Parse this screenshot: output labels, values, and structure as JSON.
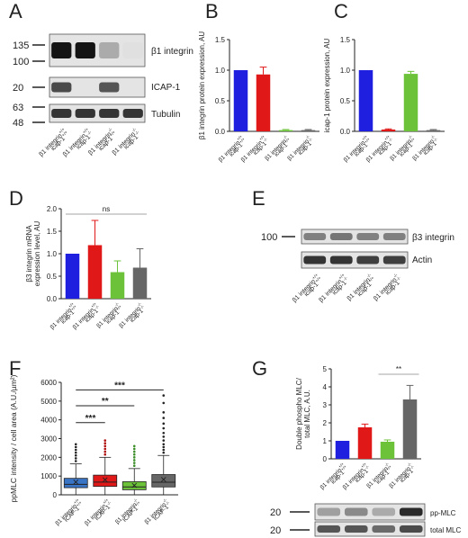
{
  "panels": {
    "A": "A",
    "B": "B",
    "C": "C",
    "D": "D",
    "E": "E",
    "F": "F",
    "G": "G"
  },
  "panel_A": {
    "markers": [
      "135",
      "100",
      "20",
      "63",
      "48"
    ],
    "bands": [
      "β1 integrin",
      "ICAP-1",
      "Tubulin"
    ],
    "lanes": [
      "β1 integrin+/+\nicap-1+/+",
      "β1 integrin+/+\nicap-1-/-",
      "β1 integrin-/-\nicap-1+/+",
      "β1 integrin-/-\nicap-1-/-"
    ]
  },
  "panel_E": {
    "markers": [
      "100"
    ],
    "bands": [
      "β3 integrin",
      "Actin"
    ],
    "lanes": [
      "β1 integrin+/+\nicap-1+/+",
      "β1 integrin+/+\nicap-1-/-",
      "β1 integrin-/-\nicap-1+/+",
      "β1 integrin-/-\nicap-1-/-"
    ]
  },
  "panel_G_blot": {
    "markers": [
      "20",
      "20"
    ],
    "bands": [
      "pp-MLC",
      "total MLC"
    ]
  },
  "chart_data": [
    {
      "panel": "B",
      "type": "bar",
      "ylabel": "β1 integrin protein expression, AU",
      "ylim": [
        0,
        1.5
      ],
      "yticks": [
        "0.0",
        "0.5",
        "1.0",
        "1.5"
      ],
      "categories": [
        "β1 integrin+/+\nicap-1+/+",
        "β1 integrin+/+\nicap-1-/-",
        "β1 integrin-/-\nicap-1+/+",
        "β1 integrin-/-\nicap-1-/-"
      ],
      "values": [
        1.0,
        0.93,
        0.02,
        0.02
      ],
      "errors": [
        0,
        0.12,
        0.01,
        0.01
      ],
      "colors": [
        "#1f1fe0",
        "#e01818",
        "#6cc33a",
        "#666666"
      ]
    },
    {
      "panel": "C",
      "type": "bar",
      "ylabel": "icap-1 protein expression, AU",
      "ylim": [
        0,
        1.5
      ],
      "yticks": [
        "0.0",
        "0.5",
        "1.0",
        "1.5"
      ],
      "categories": [
        "β1 integrin+/+\nicap-1+/+",
        "β1 integrin+/+\nicap-1-/-",
        "β1 integrin-/-\nicap-1+/+",
        "β1 integrin-/-\nicap-1-/-"
      ],
      "values": [
        1.0,
        0.03,
        0.94,
        0.02
      ],
      "errors": [
        0,
        0.01,
        0.04,
        0.01
      ],
      "colors": [
        "#1f1fe0",
        "#e01818",
        "#6cc33a",
        "#666666"
      ]
    },
    {
      "panel": "D",
      "type": "bar",
      "ylabel": "β3 integrin mRNA\nexpression level, AU",
      "ylim": [
        0,
        2.0
      ],
      "yticks": [
        "0.0",
        "0.5",
        "1.0",
        "1.5",
        "2.0"
      ],
      "categories": [
        "β1 integrin+/+\nicap-1+/+",
        "β1 integrin+/+\nicap-1-/-",
        "β1 integrin-/-\nicap-1+/+",
        "β1 integrin-/-\nicap-1-/-"
      ],
      "values": [
        1.0,
        1.19,
        0.59,
        0.69
      ],
      "errors": [
        0,
        0.55,
        0.25,
        0.42
      ],
      "colors": [
        "#1f1fe0",
        "#e01818",
        "#6cc33a",
        "#666666"
      ],
      "annotation": "ns"
    },
    {
      "panel": "F",
      "type": "box",
      "ylabel": "ppMLC intensity / cell area (A.U./µm²)",
      "ylim": [
        0,
        6000
      ],
      "yticks": [
        "0",
        "1000",
        "2000",
        "3000",
        "4000",
        "5000",
        "6000"
      ],
      "categories": [
        "β1 integrin+/+\nICAP-1+/+",
        "β1 integrin+/+\nICAP-1-/-",
        "β1 integrin-/-\nICAP-1+/+",
        "β1 integrin-/-\nICAP-1-/-"
      ],
      "boxes": [
        {
          "min": 0,
          "q1": 380,
          "median": 560,
          "q3": 880,
          "max": 1650,
          "mean": 680,
          "outliers": [
            1800,
            1950,
            2100,
            2250,
            2400,
            2550,
            2700
          ]
        },
        {
          "min": 0,
          "q1": 450,
          "median": 680,
          "q3": 1050,
          "max": 2000,
          "mean": 800,
          "outliers": [
            2150,
            2300,
            2450,
            2600,
            2750,
            2900
          ]
        },
        {
          "min": 0,
          "q1": 270,
          "median": 420,
          "q3": 700,
          "max": 1400,
          "mean": 500,
          "outliers": [
            1550,
            1700,
            1850,
            2000,
            2150,
            2300,
            2450,
            2600
          ]
        },
        {
          "min": 0,
          "q1": 420,
          "median": 670,
          "q3": 1080,
          "max": 2100,
          "mean": 820,
          "outliers": [
            2250,
            2400,
            2550,
            2700,
            2900,
            3100,
            3300,
            3550,
            3800,
            4100,
            4400,
            4900,
            5300
          ]
        }
      ],
      "colors": [
        "#3a74c4",
        "#e01818",
        "#6cc33a",
        "#666666"
      ],
      "significance": [
        {
          "from": 0,
          "to": 1,
          "label": "***"
        },
        {
          "from": 0,
          "to": 2,
          "label": "**"
        },
        {
          "from": 0,
          "to": 3,
          "label": "***"
        }
      ]
    },
    {
      "panel": "G",
      "type": "bar",
      "ylabel": "Double phospho MLC/\ntotal MLC, A.U.",
      "ylim": [
        0,
        5
      ],
      "yticks": [
        "0",
        "1",
        "2",
        "3",
        "4",
        "5"
      ],
      "categories": [
        "β1 integrin+/+\nicap-1+/+",
        "β1 integrin+/+\nicap-1-/-",
        "β1 integrin-/-\nicap-1+/+",
        "β1 integrin-/-\nicap-1-/-"
      ],
      "values": [
        1.0,
        1.75,
        0.95,
        3.3
      ],
      "errors": [
        0,
        0.18,
        0.1,
        0.78
      ],
      "colors": [
        "#1f1fe0",
        "#e01818",
        "#6cc33a",
        "#666666"
      ],
      "annotation": "**"
    }
  ]
}
